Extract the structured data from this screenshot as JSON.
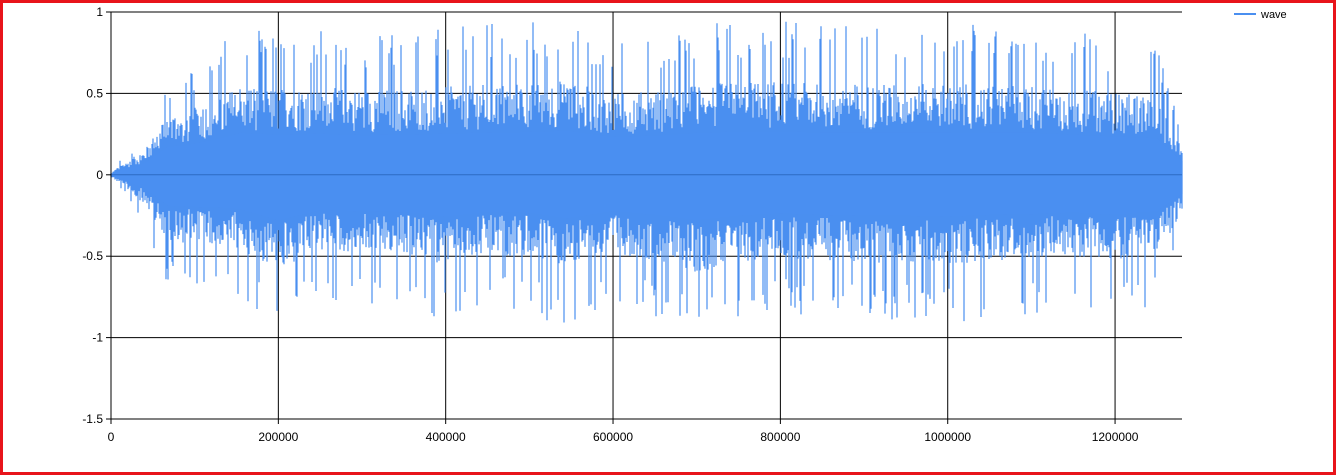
{
  "chart_data": {
    "type": "line",
    "title": "",
    "xlabel": "",
    "ylabel": "",
    "xlim": [
      0,
      1280000
    ],
    "ylim": [
      -1.5,
      1
    ],
    "x_ticks": [
      0,
      200000,
      400000,
      600000,
      800000,
      1000000,
      1200000
    ],
    "x_tick_labels": [
      "0",
      "200000",
      "400000",
      "600000",
      "800000",
      "1000000",
      "1200000"
    ],
    "y_ticks": [
      1,
      0.5,
      0,
      -0.5,
      -1,
      -1.5
    ],
    "y_tick_labels": [
      "1",
      "0.5",
      "0",
      "-0.5",
      "-1",
      "-1.5"
    ],
    "grid": true,
    "legend_position": "top-right",
    "series": [
      {
        "name": "wave",
        "color": "#4a8ff0",
        "envelope": {
          "x": [
            0,
            15000,
            40000,
            55000,
            68000,
            90000,
            130000,
            155000,
            200000,
            250000,
            300000,
            350000,
            400000,
            450000,
            500000,
            545000,
            600000,
            650000,
            700000,
            750000,
            800000,
            850000,
            900000,
            950000,
            1000000,
            1050000,
            1105000,
            1150000,
            1200000,
            1250000,
            1280000
          ],
          "max": [
            0.02,
            0.12,
            0.25,
            0.45,
            0.62,
            0.65,
            0.8,
            0.92,
            0.88,
            0.9,
            0.87,
            0.88,
            0.9,
            0.93,
            0.94,
            0.97,
            0.83,
            0.86,
            0.92,
            0.95,
            0.95,
            0.93,
            0.93,
            0.93,
            0.93,
            0.92,
            0.92,
            0.88,
            0.84,
            0.8,
            0.3
          ],
          "min": [
            -0.02,
            -0.12,
            -0.3,
            -0.5,
            -0.68,
            -0.7,
            -0.72,
            -0.76,
            -1.0,
            -0.78,
            -0.8,
            -0.82,
            -0.92,
            -0.82,
            -0.84,
            -0.96,
            -0.8,
            -0.88,
            -1.0,
            -0.9,
            -0.85,
            -0.88,
            -0.9,
            -0.9,
            -0.92,
            -0.88,
            -0.86,
            -0.83,
            -0.88,
            -0.8,
            -0.42
          ]
        }
      }
    ]
  }
}
